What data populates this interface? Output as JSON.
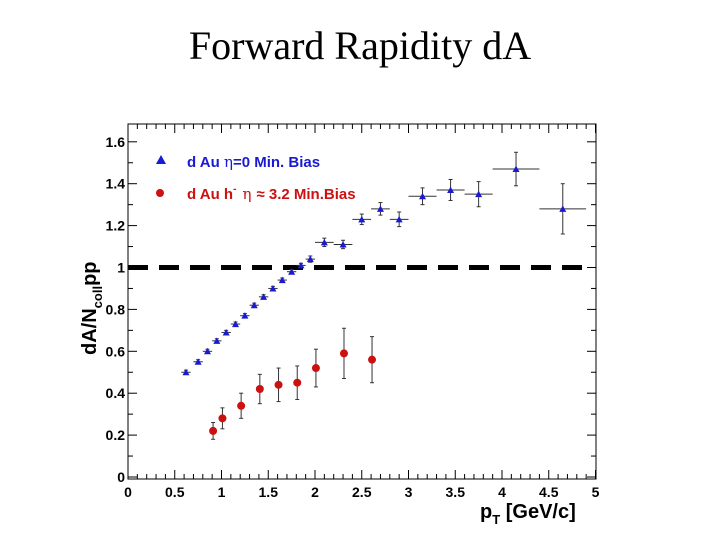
{
  "slide": {
    "title": "Forward Rapidity dA"
  },
  "chart_data": {
    "type": "scatter",
    "xlim": [
      0,
      5
    ],
    "ylim": [
      0,
      1.7
    ],
    "x_ticks": [
      0,
      0.5,
      1,
      1.5,
      2,
      2.5,
      3,
      3.5,
      4,
      4.5,
      5
    ],
    "x_tick_labels": [
      "0",
      "0.5",
      "1",
      "1.5",
      "2",
      "2.5",
      "3",
      "3.5",
      "4",
      "4.5",
      "5"
    ],
    "y_ticks": [
      0,
      0.2,
      0.4,
      0.6,
      0.8,
      1,
      1.2,
      1.4,
      1.6
    ],
    "y_tick_labels": [
      "0",
      "0.2",
      "0.4",
      "0.6",
      "0.8",
      "1",
      "1.2",
      "1.4",
      "1.6"
    ],
    "xlabel": {
      "main": "p",
      "sub": "T",
      "rest": " [GeV/c]"
    },
    "ylabel": {
      "main": "dA/N",
      "sub": "coll",
      "rest": "pp"
    },
    "reference_line": {
      "y": 1,
      "style": "dashed",
      "color": "#000000"
    },
    "series": [
      {
        "name": "d Au η=0 Min. Bias",
        "legend": {
          "p1": "d Au ",
          "eta": "η",
          "p2": "=0 Min. Bias"
        },
        "marker": "triangle",
        "color": "#1a1ad4",
        "points": [
          {
            "x": 0.62,
            "y": 0.5,
            "xerr": 0.05,
            "yerr": 0.01
          },
          {
            "x": 0.75,
            "y": 0.55,
            "xerr": 0.05,
            "yerr": 0.01
          },
          {
            "x": 0.85,
            "y": 0.6,
            "xerr": 0.05,
            "yerr": 0.01
          },
          {
            "x": 0.95,
            "y": 0.65,
            "xerr": 0.05,
            "yerr": 0.01
          },
          {
            "x": 1.05,
            "y": 0.69,
            "xerr": 0.05,
            "yerr": 0.01
          },
          {
            "x": 1.15,
            "y": 0.73,
            "xerr": 0.05,
            "yerr": 0.01
          },
          {
            "x": 1.25,
            "y": 0.77,
            "xerr": 0.05,
            "yerr": 0.01
          },
          {
            "x": 1.35,
            "y": 0.82,
            "xerr": 0.05,
            "yerr": 0.01
          },
          {
            "x": 1.45,
            "y": 0.86,
            "xerr": 0.05,
            "yerr": 0.01
          },
          {
            "x": 1.55,
            "y": 0.9,
            "xerr": 0.05,
            "yerr": 0.01
          },
          {
            "x": 1.65,
            "y": 0.94,
            "xerr": 0.05,
            "yerr": 0.01
          },
          {
            "x": 1.75,
            "y": 0.98,
            "xerr": 0.05,
            "yerr": 0.01
          },
          {
            "x": 1.85,
            "y": 1.01,
            "xerr": 0.05,
            "yerr": 0.01
          },
          {
            "x": 1.95,
            "y": 1.04,
            "xerr": 0.05,
            "yerr": 0.015
          },
          {
            "x": 2.1,
            "y": 1.12,
            "xerr": 0.1,
            "yerr": 0.02
          },
          {
            "x": 2.3,
            "y": 1.11,
            "xerr": 0.1,
            "yerr": 0.02
          },
          {
            "x": 2.5,
            "y": 1.23,
            "xerr": 0.1,
            "yerr": 0.025
          },
          {
            "x": 2.7,
            "y": 1.28,
            "xerr": 0.1,
            "yerr": 0.03
          },
          {
            "x": 2.9,
            "y": 1.23,
            "xerr": 0.1,
            "yerr": 0.035
          },
          {
            "x": 3.15,
            "y": 1.34,
            "xerr": 0.15,
            "yerr": 0.04
          },
          {
            "x": 3.45,
            "y": 1.37,
            "xerr": 0.15,
            "yerr": 0.05
          },
          {
            "x": 3.75,
            "y": 1.35,
            "xerr": 0.15,
            "yerr": 0.06
          },
          {
            "x": 4.15,
            "y": 1.47,
            "xerr": 0.25,
            "yerr": 0.08
          },
          {
            "x": 4.65,
            "y": 1.28,
            "xerr": 0.25,
            "yerr": 0.12
          }
        ]
      },
      {
        "name": "d Au h- η ≈ 3.2 Min.Bias",
        "legend": {
          "p1": "d Au h",
          "sup": "-",
          "eta": "η",
          "p2": "≈ 3.2 Min.Bias"
        },
        "marker": "circle",
        "color": "#cc1111",
        "points": [
          {
            "x": 0.91,
            "y": 0.22,
            "yerr": 0.04
          },
          {
            "x": 1.01,
            "y": 0.28,
            "yerr": 0.05
          },
          {
            "x": 1.21,
            "y": 0.34,
            "yerr": 0.06
          },
          {
            "x": 1.41,
            "y": 0.42,
            "yerr": 0.07
          },
          {
            "x": 1.61,
            "y": 0.44,
            "yerr": 0.08
          },
          {
            "x": 1.81,
            "y": 0.45,
            "yerr": 0.08
          },
          {
            "x": 2.01,
            "y": 0.52,
            "yerr": 0.09
          },
          {
            "x": 2.31,
            "y": 0.59,
            "yerr": 0.12
          },
          {
            "x": 2.61,
            "y": 0.56,
            "yerr": 0.11
          }
        ]
      }
    ]
  }
}
